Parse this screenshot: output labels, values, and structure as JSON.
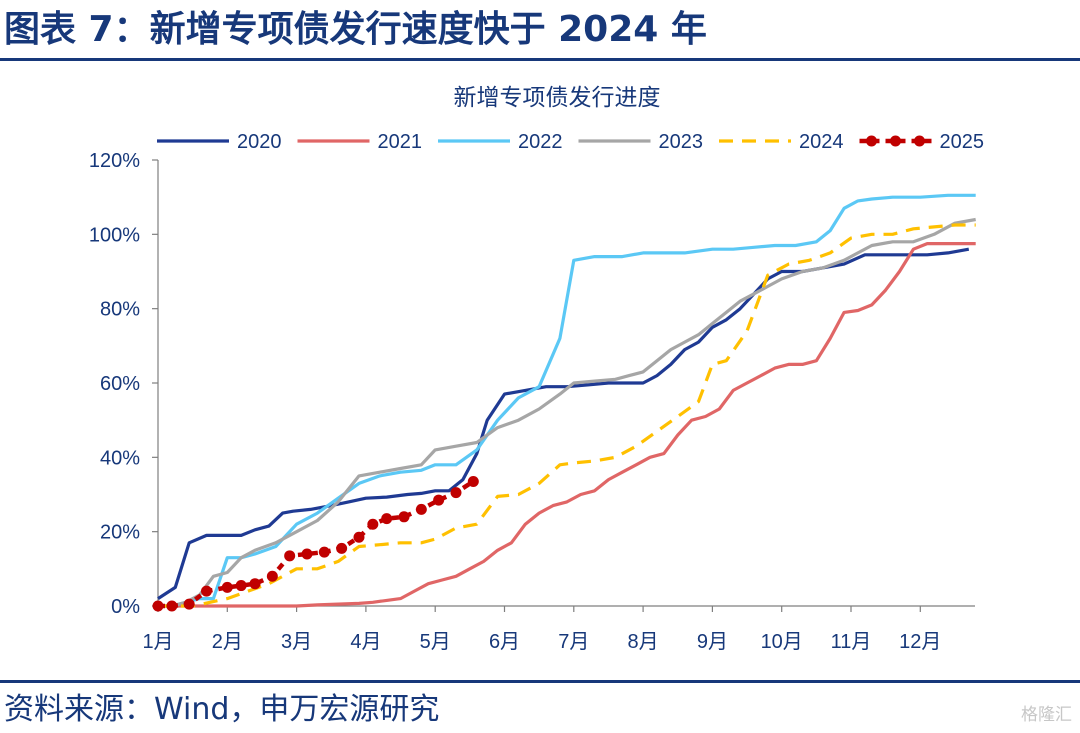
{
  "figure": {
    "title": "图表 7：新增专项债发行速度快于 2024 年",
    "source": "资料来源：Wind，申万宏源研究",
    "watermark": "格隆汇"
  },
  "chart_data": {
    "type": "line",
    "title": "新增专项债发行进度",
    "xlabel": "",
    "ylabel": "",
    "x_tick_labels": [
      "1月",
      "2月",
      "3月",
      "4月",
      "5月",
      "6月",
      "7月",
      "8月",
      "9月",
      "10月",
      "11月",
      "12月"
    ],
    "y_tick_labels": [
      "0%",
      "20%",
      "40%",
      "60%",
      "80%",
      "100%",
      "120%"
    ],
    "ylim": [
      0,
      120
    ],
    "y_unit": "%",
    "x_unit": "month",
    "xlim": [
      1,
      12.8
    ],
    "legend_position": "top",
    "grid": false,
    "series": [
      {
        "name": "2020",
        "color": "#1f3a93",
        "style": "solid",
        "markers": false,
        "x": [
          1.0,
          1.25,
          1.45,
          1.7,
          2.0,
          2.2,
          2.4,
          2.6,
          2.8,
          2.95,
          3.2,
          3.5,
          3.75,
          4.0,
          4.3,
          4.6,
          4.8,
          5.0,
          5.2,
          5.4,
          5.6,
          5.75,
          6.0,
          6.3,
          6.6,
          6.9,
          7.2,
          7.5,
          7.8,
          8.0,
          8.2,
          8.4,
          8.6,
          8.8,
          9.0,
          9.2,
          9.4,
          9.6,
          9.8,
          10.0,
          10.3,
          10.6,
          10.9,
          11.2,
          11.5,
          11.8,
          12.1,
          12.4,
          12.7
        ],
        "y": [
          2,
          5,
          17,
          19,
          19,
          19,
          20.5,
          21.5,
          25,
          25.5,
          26,
          27,
          28,
          29,
          29.3,
          30,
          30.3,
          31,
          31,
          34,
          41,
          50,
          57,
          58,
          59,
          59,
          59.5,
          60,
          60,
          60,
          62,
          65,
          69,
          71,
          75,
          77,
          80,
          84,
          88,
          90,
          90,
          91,
          92,
          94.5,
          94.5,
          94.5,
          94.5,
          95,
          96
        ]
      },
      {
        "name": "2021",
        "color": "#e06666",
        "style": "solid",
        "markers": false,
        "x": [
          1.0,
          1.5,
          2.0,
          2.5,
          3.0,
          3.3,
          3.6,
          3.9,
          4.1,
          4.3,
          4.5,
          4.7,
          4.9,
          5.1,
          5.3,
          5.5,
          5.7,
          5.9,
          6.1,
          6.3,
          6.5,
          6.7,
          6.9,
          7.1,
          7.3,
          7.5,
          7.7,
          7.9,
          8.1,
          8.3,
          8.5,
          8.7,
          8.9,
          9.1,
          9.3,
          9.5,
          9.7,
          9.9,
          10.1,
          10.3,
          10.5,
          10.7,
          10.9,
          11.1,
          11.3,
          11.5,
          11.7,
          11.9,
          12.1,
          12.3,
          12.5,
          12.8
        ],
        "y": [
          0,
          0,
          0,
          0,
          0,
          0.3,
          0.5,
          0.7,
          1,
          1.5,
          2,
          4,
          6,
          7,
          8,
          10,
          12,
          15,
          17,
          22,
          25,
          27,
          28,
          30,
          31,
          34,
          36,
          38,
          40,
          41,
          46,
          50,
          51,
          53,
          58,
          60,
          62,
          64,
          65,
          65,
          66,
          72,
          79,
          79.5,
          81,
          85,
          90,
          96,
          97.5,
          97.5,
          97.5,
          97.5
        ]
      },
      {
        "name": "2022",
        "color": "#5bc8f5",
        "style": "solid",
        "markers": false,
        "x": [
          1.0,
          1.2,
          1.4,
          1.6,
          1.8,
          2.0,
          2.2,
          2.4,
          2.7,
          3.0,
          3.3,
          3.6,
          3.9,
          4.2,
          4.5,
          4.8,
          5.0,
          5.3,
          5.6,
          5.9,
          6.2,
          6.5,
          6.8,
          7.0,
          7.3,
          7.7,
          8.0,
          8.3,
          8.6,
          9.0,
          9.3,
          9.6,
          9.9,
          10.2,
          10.5,
          10.7,
          10.9,
          11.1,
          11.3,
          11.6,
          12.0,
          12.4,
          12.8
        ],
        "y": [
          0,
          0,
          1,
          2,
          2,
          13,
          13,
          14,
          16,
          22,
          25,
          29,
          33,
          35,
          36,
          36.5,
          38,
          38,
          42,
          50,
          56,
          59,
          72,
          93,
          94,
          94,
          95,
          95,
          95,
          96,
          96,
          96.5,
          97,
          97,
          98,
          101,
          107,
          109,
          109.5,
          110,
          110,
          110.5,
          110.5
        ]
      },
      {
        "name": "2023",
        "color": "#a6a6a6",
        "style": "solid",
        "markers": false,
        "x": [
          1.0,
          1.2,
          1.4,
          1.6,
          1.8,
          2.0,
          2.2,
          2.4,
          2.7,
          3.0,
          3.3,
          3.6,
          3.9,
          4.2,
          4.5,
          4.8,
          5.0,
          5.3,
          5.6,
          5.9,
          6.2,
          6.5,
          6.8,
          7.0,
          7.3,
          7.6,
          7.8,
          8.0,
          8.2,
          8.4,
          8.6,
          8.8,
          9.0,
          9.2,
          9.4,
          9.6,
          9.8,
          10.0,
          10.3,
          10.6,
          10.9,
          11.1,
          11.3,
          11.6,
          11.9,
          12.2,
          12.5,
          12.8
        ],
        "y": [
          0,
          0,
          1,
          3,
          8,
          9,
          13,
          15,
          17,
          20,
          23,
          28,
          35,
          36,
          37,
          38,
          42,
          43,
          44,
          48,
          50,
          53,
          57,
          60,
          60.5,
          61,
          62,
          63,
          66,
          69,
          71,
          73,
          76,
          79,
          82,
          84,
          86,
          88,
          90,
          91,
          93,
          95,
          97,
          98,
          98,
          100,
          103,
          104
        ]
      },
      {
        "name": "2024",
        "color": "#ffc000",
        "style": "dashed",
        "markers": false,
        "x": [
          1.0,
          1.5,
          2.0,
          2.3,
          2.6,
          3.0,
          3.3,
          3.6,
          3.9,
          4.2,
          4.5,
          4.8,
          5.0,
          5.3,
          5.6,
          5.9,
          6.2,
          6.5,
          6.8,
          7.0,
          7.3,
          7.6,
          7.9,
          8.2,
          8.5,
          8.8,
          9.0,
          9.2,
          9.5,
          9.8,
          10.1,
          10.4,
          10.7,
          11.0,
          11.3,
          11.6,
          11.9,
          12.2,
          12.5,
          12.8
        ],
        "y": [
          0,
          0,
          2,
          4,
          6,
          10,
          10,
          12,
          16,
          16.5,
          17,
          17,
          18,
          21,
          22,
          29.5,
          30,
          33,
          38,
          38.5,
          39,
          40,
          43,
          47,
          51,
          55,
          65,
          66,
          74,
          89,
          92,
          93,
          95,
          99,
          100,
          100,
          101.5,
          102,
          102.5,
          102.5
        ]
      },
      {
        "name": "2025",
        "color": "#c00000",
        "style": "dotted",
        "markers": true,
        "x": [
          1.0,
          1.2,
          1.45,
          1.7,
          2.0,
          2.2,
          2.4,
          2.65,
          2.9,
          3.15,
          3.4,
          3.65,
          3.9,
          4.1,
          4.3,
          4.55,
          4.8,
          5.05,
          5.3,
          5.55
        ],
        "y": [
          0,
          0,
          0.5,
          4,
          5,
          5.5,
          6,
          8,
          13.5,
          14,
          14.5,
          15.5,
          18.5,
          22,
          23.5,
          24,
          26,
          28.5,
          30.5,
          33.5
        ]
      }
    ]
  }
}
